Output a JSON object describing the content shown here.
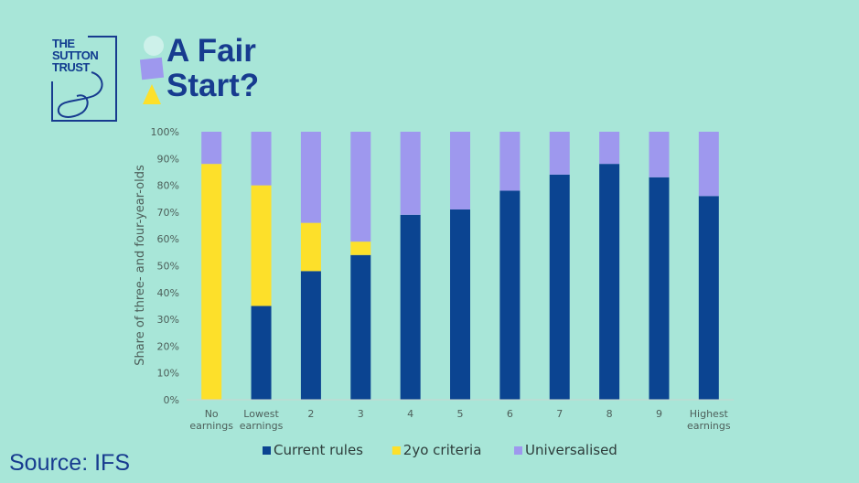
{
  "brand": {
    "logo_lines": [
      "THE",
      "SUTTON",
      "TRUST"
    ],
    "title_line1": "A Fair",
    "title_line2": "Start?",
    "source": "Source: IFS"
  },
  "colors": {
    "background": "#a8e6d8",
    "current_rules": "#0b4491",
    "criteria_2yo": "#fde02a",
    "universalised": "#9e98ee",
    "brand_blue": "#173b8f"
  },
  "chart_data": {
    "type": "bar",
    "stacked": true,
    "ylabel": "Share of three- and four-year-olds",
    "ylim": [
      0,
      100
    ],
    "yticks": [
      "0%",
      "10%",
      "20%",
      "30%",
      "40%",
      "50%",
      "60%",
      "70%",
      "80%",
      "90%",
      "100%"
    ],
    "categories": [
      [
        "No",
        "earnings"
      ],
      [
        "Lowest",
        "earnings"
      ],
      [
        "2"
      ],
      [
        "3"
      ],
      [
        "4"
      ],
      [
        "5"
      ],
      [
        "6"
      ],
      [
        "7"
      ],
      [
        "8"
      ],
      [
        "9"
      ],
      [
        "Highest",
        "earnings"
      ]
    ],
    "series": [
      {
        "name": "Current rules",
        "color": "#0b4491",
        "values": [
          0,
          35,
          48,
          54,
          69,
          71,
          78,
          84,
          88,
          83,
          76
        ]
      },
      {
        "name": "2yo criteria",
        "color": "#fde02a",
        "values": [
          88,
          45,
          18,
          5,
          0,
          0,
          0,
          0,
          0,
          0,
          0
        ]
      },
      {
        "name": "Universalised",
        "color": "#9e98ee",
        "values": [
          12,
          20,
          34,
          41,
          31,
          29,
          22,
          16,
          12,
          17,
          24
        ]
      }
    ],
    "legend_position": "bottom",
    "grid": false
  }
}
